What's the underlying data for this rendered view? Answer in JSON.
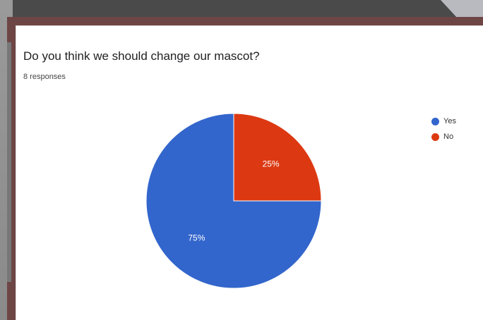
{
  "form": {
    "question": "Do you think we should change our mascot?",
    "responses_label": "8 responses"
  },
  "chart_data": {
    "type": "pie",
    "title": "Do you think we should change our mascot?",
    "subtitle": "8 responses",
    "categories": [
      "Yes",
      "No"
    ],
    "values": [
      75,
      25
    ],
    "value_labels": [
      "75%",
      "25%"
    ],
    "colors": [
      "#3366cc",
      "#dc3912"
    ],
    "legend_position": "right"
  }
}
